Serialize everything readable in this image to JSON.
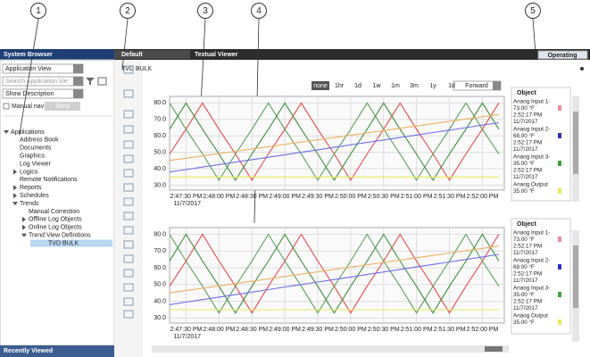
{
  "callouts": [
    "1",
    "2",
    "3",
    "4",
    "5"
  ],
  "header": {
    "left_title": "System Browser",
    "tabs": [
      "Default",
      "Textual Viewer"
    ],
    "status": "Operating"
  },
  "browser": {
    "view": "Application View",
    "search": "Search Application Vie",
    "description": "Show Description",
    "manual": "Manual nav",
    "send": "Send",
    "tree": [
      {
        "label": "Applications",
        "level": 0,
        "expander": "open"
      },
      {
        "label": "Address Book",
        "level": 1
      },
      {
        "label": "Documents",
        "level": 1
      },
      {
        "label": "Graphics",
        "level": 1
      },
      {
        "label": "Log Viewer",
        "level": 1
      },
      {
        "label": "Logics",
        "level": 1,
        "expander": "closed"
      },
      {
        "label": "Remote Notifications",
        "level": 1
      },
      {
        "label": "Reports",
        "level": 1,
        "expander": "closed"
      },
      {
        "label": "Schedules",
        "level": 1,
        "expander": "closed"
      },
      {
        "label": "Trends",
        "level": 1,
        "expander": "open"
      },
      {
        "label": "Manual Correction",
        "level": 2
      },
      {
        "label": "Offline Log Objects",
        "level": 2,
        "expander": "closed"
      },
      {
        "label": "Online Log Objects",
        "level": 2,
        "expander": "closed"
      },
      {
        "label": "Trend View Definitions",
        "level": 2,
        "expander": "open"
      },
      {
        "label": "TVD BULK",
        "level": 3,
        "selected": true
      }
    ],
    "footer": "Recently Viewed"
  },
  "page_title": "TVD BULK",
  "ranges": [
    "none",
    "1hr",
    "1d",
    "1w",
    "1m",
    "3m",
    "1y",
    "1d"
  ],
  "direction": "Forward",
  "chart_data": [
    {
      "type": "line",
      "date": "11/7/2017",
      "x": [
        "2:47:15 PM",
        "2:47:30 PM",
        "2:47:45 PM",
        "2:48:00 PM",
        "2:48:15 PM",
        "2:48:30 PM",
        "2:48:45 PM",
        "2:49:00 PM",
        "2:49:15 PM",
        "2:49:30 PM",
        "2:49:45 PM",
        "2:50:00 PM",
        "2:50:15 PM",
        "2:50:30 PM",
        "2:50:45 PM",
        "2:51:00 PM",
        "2:51:15 PM",
        "2:51:30 PM",
        "2:51:45 PM",
        "2:52:00 PM",
        "2:52:15 PM"
      ],
      "xlim": [
        "2:47:15 PM",
        "2:52:20 PM"
      ],
      "xticks": [
        "2:47:30 PM",
        "2:48:00 PM",
        "2:48:30 PM",
        "2:49:00 PM",
        "2:49:30 PM",
        "2:50:00 PM",
        "2:50:30 PM",
        "2:51:00 PM",
        "2:51:30 PM",
        "2:52:00 PM"
      ],
      "ylim": [
        27,
        84
      ],
      "yticks": [
        {
          "value": 30,
          "label": "30.0"
        },
        {
          "value": 40,
          "label": "40.0"
        },
        {
          "value": 50,
          "label": "50.0"
        },
        {
          "value": 60,
          "label": "60.0"
        },
        {
          "value": 70,
          "label": "70.0"
        },
        {
          "value": 80,
          "label": "80.0"
        }
      ],
      "grid": true,
      "series": [
        {
          "color": "#e8474a",
          "values": [
            49,
            64,
            80,
            64,
            49,
            33,
            49,
            64,
            80,
            64,
            49,
            33,
            49,
            64,
            80,
            64,
            49,
            33,
            49,
            64,
            80
          ]
        },
        {
          "color": "#5aa05a",
          "values": [
            80,
            64,
            49,
            33,
            49,
            64,
            80,
            64,
            49,
            33,
            49,
            64,
            80,
            64,
            49,
            33,
            49,
            64,
            80,
            64,
            49
          ]
        },
        {
          "color": "#3c8c3c",
          "values": [
            64,
            80,
            64,
            49,
            33,
            49,
            64,
            80,
            64,
            49,
            33,
            49,
            64,
            80,
            64,
            49,
            33,
            49,
            64,
            80,
            64
          ]
        },
        {
          "color": "#f0b060",
          "values": [
            45,
            46.4,
            47.8,
            49.2,
            50.6,
            52,
            53.4,
            54.8,
            56.2,
            57.6,
            59,
            60.4,
            61.8,
            63.2,
            64.6,
            66,
            67.4,
            68.8,
            70.2,
            71.6,
            73
          ]
        },
        {
          "color": "#6f6fe8",
          "values": [
            38,
            39.5,
            41,
            42.5,
            44,
            45.5,
            47,
            48.5,
            50,
            51.5,
            53,
            54.5,
            56,
            57.5,
            59,
            60.5,
            62,
            63.5,
            65,
            66.5,
            68
          ]
        },
        {
          "color": "#e8e85a",
          "values": [
            35,
            35,
            35,
            35,
            35,
            35,
            35,
            35,
            35,
            35,
            35,
            35,
            35,
            35,
            35,
            35,
            35,
            35,
            35,
            35,
            35
          ]
        }
      ],
      "legend": {
        "header": "Object",
        "entries": [
          {
            "name": "Anaog Input 1-",
            "value": "73.00 °F",
            "time": "2:52:17 PM",
            "date": "11/7/2017",
            "color": "#f08a9a"
          },
          {
            "name": "Anaog Input 2-",
            "value": "68.00 °F",
            "time": "2:52:17 PM",
            "date": "11/7/2017",
            "color": "#3030c0"
          },
          {
            "name": "Anaog Input 3-",
            "value": "35.00 °F",
            "time": "2:52:17 PM",
            "date": "11/7/2017",
            "color": "#40a040"
          },
          {
            "name": "Anaog Output",
            "value": "35.00 °F",
            "color": "#e8e85a"
          }
        ]
      }
    },
    {
      "type": "line",
      "date": "11/7/2017",
      "x": [
        "2:47:15 PM",
        "2:47:30 PM",
        "2:47:45 PM",
        "2:48:00 PM",
        "2:48:15 PM",
        "2:48:30 PM",
        "2:48:45 PM",
        "2:49:00 PM",
        "2:49:15 PM",
        "2:49:30 PM",
        "2:49:45 PM",
        "2:50:00 PM",
        "2:50:15 PM",
        "2:50:30 PM",
        "2:50:45 PM",
        "2:51:00 PM",
        "2:51:15 PM",
        "2:51:30 PM",
        "2:51:45 PM",
        "2:52:00 PM",
        "2:52:15 PM"
      ],
      "xlim": [
        "2:47:15 PM",
        "2:52:20 PM"
      ],
      "xticks": [
        "2:47:30 PM",
        "2:48:00 PM",
        "2:48:30 PM",
        "2:49:00 PM",
        "2:49:30 PM",
        "2:50:00 PM",
        "2:50:30 PM",
        "2:51:00 PM",
        "2:51:30 PM",
        "2:52:00 PM"
      ],
      "ylim": [
        27,
        84
      ],
      "yticks": [
        {
          "value": 30,
          "label": "30.0"
        },
        {
          "value": 40,
          "label": "40.0"
        },
        {
          "value": 50,
          "label": "50.0"
        },
        {
          "value": 60,
          "label": "60.0"
        },
        {
          "value": 70,
          "label": "70.0"
        },
        {
          "value": 80,
          "label": "80.0"
        }
      ],
      "grid": true,
      "series": [
        {
          "color": "#e8474a",
          "values": [
            49,
            64,
            80,
            64,
            49,
            33,
            49,
            64,
            80,
            64,
            49,
            33,
            49,
            64,
            80,
            64,
            49,
            33,
            49,
            64,
            80
          ]
        },
        {
          "color": "#5aa05a",
          "values": [
            80,
            64,
            49,
            33,
            49,
            64,
            80,
            64,
            49,
            33,
            49,
            64,
            80,
            64,
            49,
            33,
            49,
            64,
            80,
            64,
            49
          ]
        },
        {
          "color": "#3c8c3c",
          "values": [
            64,
            80,
            64,
            49,
            33,
            49,
            64,
            80,
            64,
            49,
            33,
            49,
            64,
            80,
            64,
            49,
            33,
            49,
            64,
            80,
            64
          ]
        },
        {
          "color": "#f0b060",
          "values": [
            45,
            46.4,
            47.8,
            49.2,
            50.6,
            52,
            53.4,
            54.8,
            56.2,
            57.6,
            59,
            60.4,
            61.8,
            63.2,
            64.6,
            66,
            67.4,
            68.8,
            70.2,
            71.6,
            73
          ]
        },
        {
          "color": "#6f6fe8",
          "values": [
            38,
            39.5,
            41,
            42.5,
            44,
            45.5,
            47,
            48.5,
            50,
            51.5,
            53,
            54.5,
            56,
            57.5,
            59,
            60.5,
            62,
            63.5,
            65,
            66.5,
            68
          ]
        },
        {
          "color": "#e8e85a",
          "values": [
            35,
            35,
            35,
            35,
            35,
            35,
            35,
            35,
            35,
            35,
            35,
            35,
            35,
            35,
            35,
            35,
            35,
            35,
            35,
            35,
            35
          ]
        }
      ],
      "legend": {
        "header": "Object",
        "entries": [
          {
            "name": "Anaog Input 1-",
            "value": "73.00 °F",
            "time": "2:52:17 PM",
            "date": "11/7/2017",
            "color": "#f08a9a"
          },
          {
            "name": "Anaog Input 2-",
            "value": "68.00 °F",
            "time": "2:52:17 PM",
            "date": "11/7/2017",
            "color": "#3030c0"
          },
          {
            "name": "Anaog Input 3-",
            "value": "35.00 °F",
            "time": "2:52:17 PM",
            "date": "11/7/2017",
            "color": "#40a040"
          },
          {
            "name": "Anaog Output",
            "value": "35.00 °F",
            "color": "#e8e85a"
          }
        ]
      }
    }
  ]
}
